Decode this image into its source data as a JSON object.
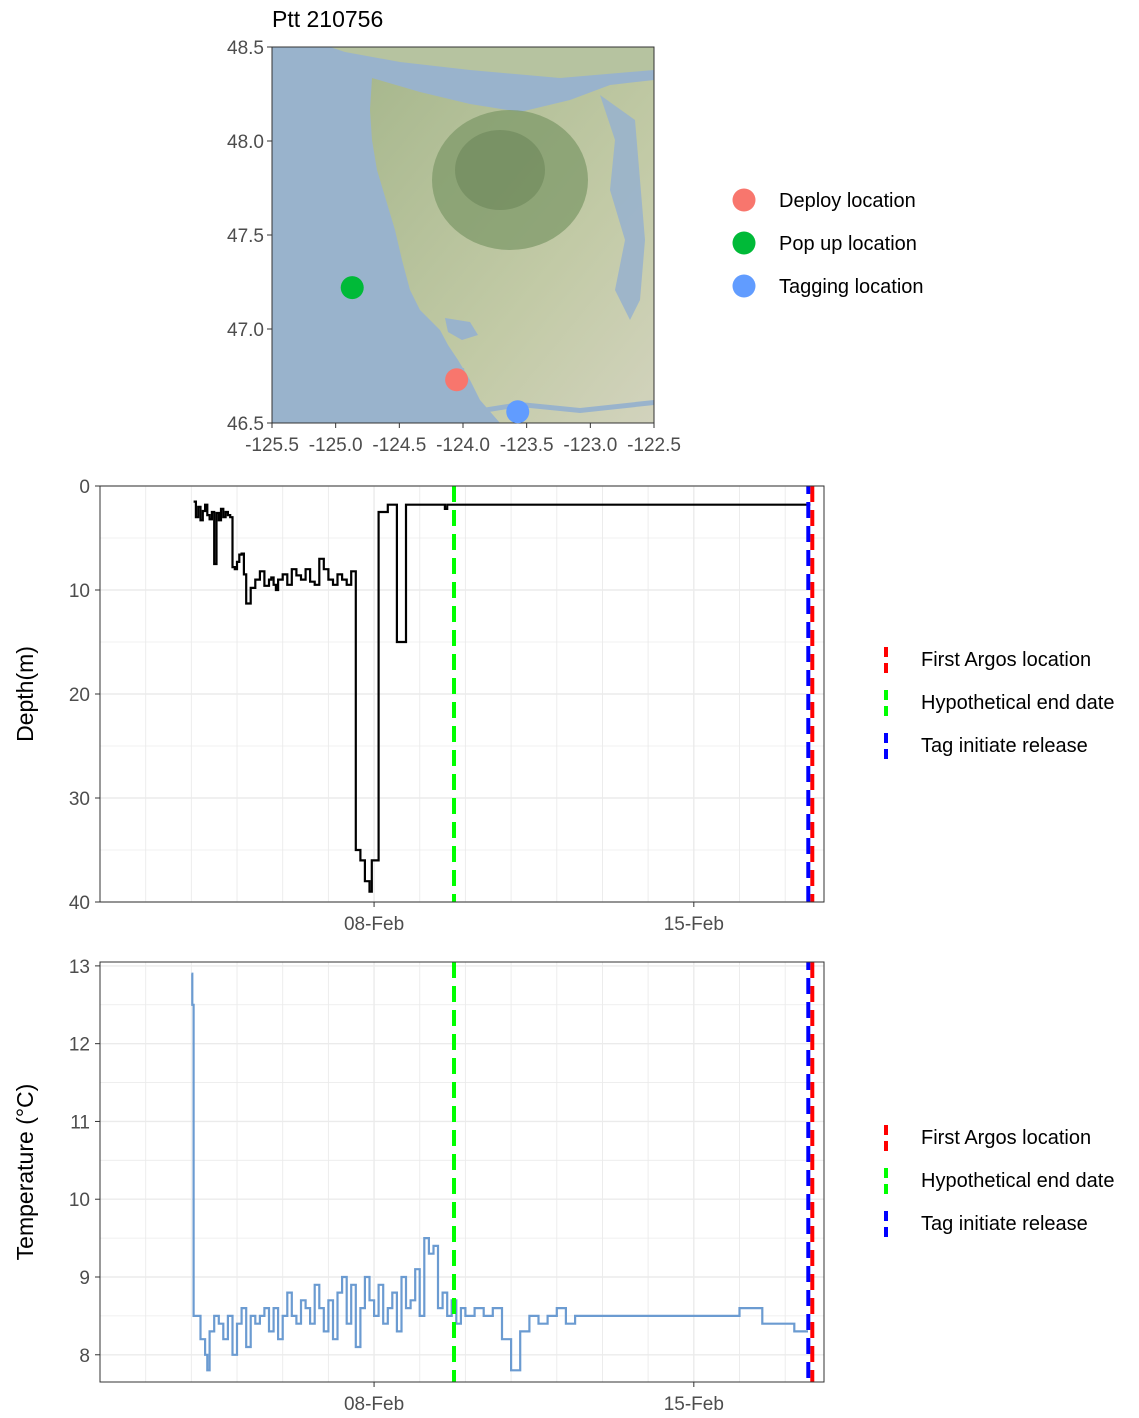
{
  "chart_data": [
    {
      "type": "scatter",
      "title": "Ptt 210756",
      "xlim": [
        -125.5,
        -122.5
      ],
      "ylim": [
        46.5,
        48.5
      ],
      "x_ticks": [
        -125.5,
        -125.0,
        -124.5,
        -124.0,
        -123.5,
        -123.0,
        -122.5
      ],
      "x_tick_labels": [
        "-125.5",
        "-125.0",
        "-124.5",
        "-124.0",
        "-123.5",
        "-123.0",
        "-122.5"
      ],
      "y_ticks": [
        46.5,
        47.0,
        47.5,
        48.0,
        48.5
      ],
      "y_tick_labels": [
        "46.5",
        "47.0",
        "47.5",
        "48.0",
        "48.5"
      ],
      "background": "terrain map",
      "legend_position": "right",
      "points": [
        {
          "name": "Deploy location",
          "lon": -124.05,
          "lat": 46.73,
          "color": "#F8766D"
        },
        {
          "name": "Pop up location",
          "lon": -124.87,
          "lat": 47.22,
          "color": "#00BA38"
        },
        {
          "name": "Tagging location",
          "lon": -123.57,
          "lat": 46.56,
          "color": "#619CFF"
        }
      ]
    },
    {
      "type": "line",
      "ylabel": "Depth(m)",
      "y_reversed": true,
      "ylim": [
        0,
        40
      ],
      "y_ticks": [
        0,
        10,
        20,
        30,
        40
      ],
      "y_tick_labels": [
        "0",
        "10",
        "20",
        "30",
        "40"
      ],
      "x_ticks_days": [
        8,
        15
      ],
      "x_tick_labels": [
        "08-Feb",
        "15-Feb"
      ],
      "xlim_days": [
        2.0,
        17.85
      ],
      "grid": true,
      "legend_position": "right",
      "line_color": "#000000",
      "series": [
        {
          "x_days": [
            4.05,
            4.1,
            4.15,
            4.2,
            4.25,
            4.3,
            4.35,
            4.4,
            4.45,
            4.5,
            4.55,
            4.6,
            4.65,
            4.7,
            4.75,
            4.8,
            4.85,
            4.9,
            4.95,
            5.0,
            5.05,
            5.1,
            5.15,
            5.2,
            5.3,
            5.4,
            5.5,
            5.6,
            5.7,
            5.75,
            5.8,
            5.85,
            5.9,
            6.0,
            6.1,
            6.2,
            6.3,
            6.4,
            6.5,
            6.6,
            6.7,
            6.8,
            6.9,
            7.0,
            7.1,
            7.2,
            7.3,
            7.4,
            7.5,
            7.6,
            7.7,
            7.8,
            7.9,
            7.95,
            8.1,
            8.3,
            8.5,
            8.7,
            8.8,
            8.82,
            8.9,
            9.0,
            9.05,
            9.1,
            9.15,
            9.2,
            9.25,
            9.3,
            9.35,
            9.4,
            9.45,
            9.5,
            9.55,
            9.6,
            9.65,
            9.7,
            9.75,
            9.8,
            9.85,
            9.9,
            9.95,
            10.0,
            10.5,
            11.0,
            11.5,
            12.0,
            12.5,
            13.0,
            13.5,
            14.0,
            14.5,
            15.0,
            15.5,
            16.0,
            16.5,
            17.0,
            17.55
          ],
          "y": [
            1.5,
            3.0,
            2.0,
            3.3,
            2.4,
            1.8,
            2.8,
            3.2,
            2.5,
            7.5,
            2.6,
            3.3,
            2.2,
            3.0,
            2.5,
            2.8,
            3.0,
            7.8,
            8.0,
            7.3,
            6.6,
            6.5,
            8.5,
            11.3,
            9.8,
            9.0,
            8.2,
            9.6,
            9.0,
            8.8,
            9.5,
            10.0,
            9.0,
            8.5,
            9.5,
            8.0,
            8.6,
            9.0,
            8.0,
            9.2,
            9.5,
            7.0,
            8.0,
            9.0,
            9.5,
            8.5,
            9.0,
            9.5,
            8.2,
            35.0,
            36.0,
            38.0,
            39.0,
            36.0,
            2.5,
            1.8,
            15.0,
            1.8,
            1.8,
            1.8,
            1.8,
            1.8,
            1.8,
            1.8,
            1.8,
            1.8,
            1.8,
            1.8,
            1.8,
            1.8,
            1.8,
            1.8,
            2.2,
            1.8,
            1.8,
            1.8,
            1.8,
            1.8,
            1.8,
            1.8,
            1.8,
            1.8,
            1.8,
            1.8,
            1.8,
            1.8,
            1.8,
            1.8,
            1.8,
            1.8,
            1.8,
            1.8,
            1.8,
            1.8,
            1.8,
            1.8,
            1.8
          ]
        }
      ],
      "vlines": [
        {
          "name": "First Argos location",
          "x_days": 17.55,
          "color": "#FF0000"
        },
        {
          "name": "Hypothetical end date",
          "x_days": 9.75,
          "color": "#00FF00"
        },
        {
          "name": "Tag initiate release",
          "x_days": 17.55,
          "color": "#0000FF"
        }
      ]
    },
    {
      "type": "line",
      "ylabel": "Temperature (°C)",
      "ylim": [
        7.65,
        13.05
      ],
      "y_ticks": [
        8,
        9,
        10,
        11,
        12,
        13
      ],
      "y_tick_labels": [
        "8",
        "9",
        "10",
        "11",
        "12",
        "13"
      ],
      "x_ticks_days": [
        8,
        15
      ],
      "x_tick_labels": [
        "08-Feb",
        "15-Feb"
      ],
      "xlim_days": [
        2.0,
        17.85
      ],
      "grid": true,
      "legend_position": "right",
      "line_color": "#6B9BD1",
      "series": [
        {
          "x_days": [
            4.0,
            4.02,
            4.05,
            4.08,
            4.15,
            4.2,
            4.3,
            4.35,
            4.4,
            4.5,
            4.6,
            4.7,
            4.8,
            4.9,
            5.0,
            5.1,
            5.2,
            5.3,
            5.4,
            5.5,
            5.6,
            5.7,
            5.8,
            5.9,
            6.0,
            6.1,
            6.2,
            6.3,
            6.4,
            6.5,
            6.6,
            6.7,
            6.8,
            6.9,
            7.0,
            7.1,
            7.2,
            7.3,
            7.4,
            7.5,
            7.6,
            7.7,
            7.8,
            7.9,
            8.0,
            8.1,
            8.2,
            8.3,
            8.4,
            8.5,
            8.6,
            8.7,
            8.8,
            8.9,
            9.0,
            9.1,
            9.2,
            9.3,
            9.4,
            9.5,
            9.6,
            9.7,
            9.8,
            9.9,
            10.0,
            10.2,
            10.4,
            10.6,
            10.8,
            11.0,
            11.2,
            11.4,
            11.6,
            11.8,
            12.0,
            12.2,
            12.4,
            12.6,
            12.8,
            13.0,
            13.5,
            14.0,
            14.5,
            15.0,
            15.5,
            16.0,
            16.5,
            17.0,
            17.2,
            17.5
          ],
          "y": [
            12.9,
            12.5,
            8.5,
            8.5,
            8.5,
            8.2,
            8.0,
            7.8,
            8.3,
            8.5,
            8.4,
            8.2,
            8.5,
            8.0,
            8.4,
            8.6,
            8.1,
            8.5,
            8.4,
            8.5,
            8.6,
            8.3,
            8.6,
            8.2,
            8.5,
            8.8,
            8.5,
            8.4,
            8.7,
            8.6,
            8.4,
            8.9,
            8.6,
            8.3,
            8.7,
            8.2,
            8.8,
            9.0,
            8.4,
            8.9,
            8.1,
            8.6,
            9.0,
            8.7,
            8.5,
            8.9,
            8.4,
            8.6,
            8.8,
            8.3,
            9.0,
            8.6,
            8.7,
            9.1,
            8.5,
            9.5,
            9.3,
            9.4,
            8.6,
            8.8,
            8.5,
            8.7,
            8.4,
            8.6,
            8.5,
            8.6,
            8.5,
            8.6,
            8.2,
            7.8,
            8.3,
            8.5,
            8.4,
            8.5,
            8.6,
            8.4,
            8.5,
            8.5,
            8.5,
            8.5,
            8.5,
            8.5,
            8.5,
            8.5,
            8.5,
            8.6,
            8.4,
            8.4,
            8.3,
            8.3
          ]
        }
      ],
      "vlines": [
        {
          "name": "First Argos location",
          "x_days": 17.55,
          "color": "#FF0000"
        },
        {
          "name": "Hypothetical end date",
          "x_days": 9.75,
          "color": "#00FF00"
        },
        {
          "name": "Tag initiate release",
          "x_days": 17.55,
          "color": "#0000FF"
        }
      ]
    }
  ]
}
